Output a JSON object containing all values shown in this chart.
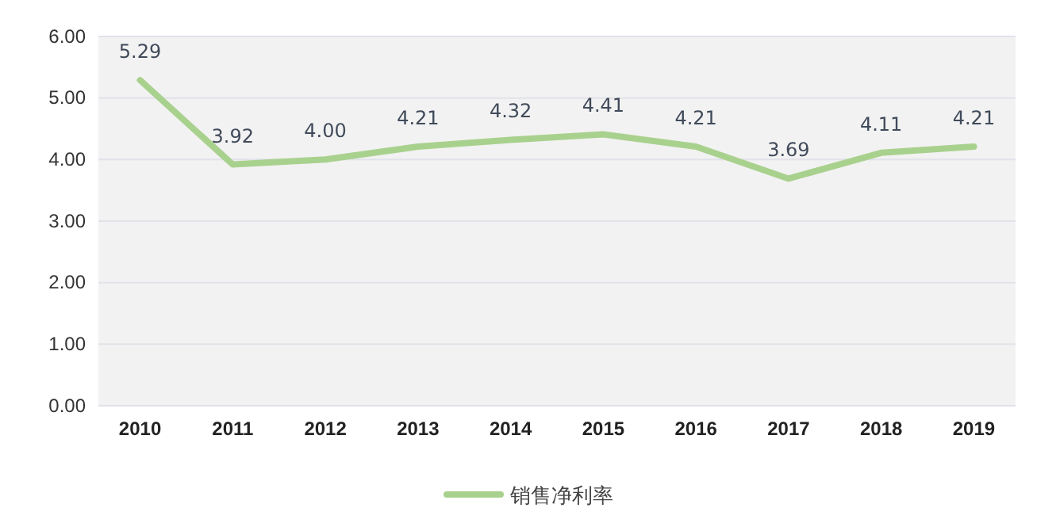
{
  "chart_data": {
    "type": "line",
    "categories": [
      "2010",
      "2011",
      "2012",
      "2013",
      "2014",
      "2015",
      "2016",
      "2017",
      "2018",
      "2019"
    ],
    "series": [
      {
        "name": "销售净利率",
        "color": "#a9d18e",
        "values": [
          5.29,
          3.92,
          4.0,
          4.21,
          4.32,
          4.41,
          4.21,
          3.69,
          4.11,
          4.21
        ],
        "value_labels": [
          "5.29",
          "3.92",
          "4.00",
          "4.21",
          "4.32",
          "4.41",
          "4.21",
          "3.69",
          "4.11",
          "4.21"
        ]
      }
    ],
    "ylim": [
      0,
      6
    ],
    "yticks": [
      {
        "value": 0,
        "label": "0.00"
      },
      {
        "value": 1,
        "label": "1.00"
      },
      {
        "value": 2,
        "label": "2.00"
      },
      {
        "value": 3,
        "label": "3.00"
      },
      {
        "value": 4,
        "label": "4.00"
      },
      {
        "value": 5,
        "label": "5.00"
      },
      {
        "value": 6,
        "label": "6.00"
      }
    ],
    "grid": "y",
    "legend": "bottom",
    "marker": "none",
    "line_style": "solid"
  }
}
